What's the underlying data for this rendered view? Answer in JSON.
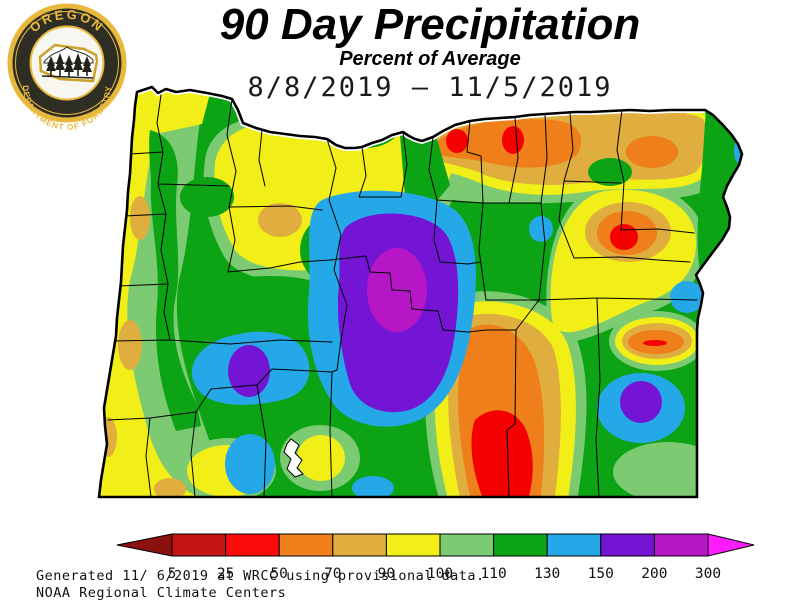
{
  "header": {
    "title": "90 Day Precipitation",
    "subtitle": "Percent of Average",
    "date_range": "8/8/2019 — 11/5/2019"
  },
  "logo": {
    "top_text": "OREGON",
    "bottom_text": "DEPARTMENT OF FORESTRY"
  },
  "legend": {
    "tick_labels": [
      "5",
      "25",
      "50",
      "70",
      "90",
      "100",
      "110",
      "130",
      "150",
      "200",
      "300"
    ],
    "segment_colors": [
      "#C41414",
      "#FB0B0B",
      "#EF7F1A",
      "#DFAE3F",
      "#F2EE17",
      "#7CCB72",
      "#0CA315",
      "#25A8E8",
      "#7414D4",
      "#B616C6"
    ],
    "arrow_left_color": "#8B1111",
    "arrow_right_color": "#FD1CFD"
  },
  "footer": {
    "line1": "Generated 11/ 6/2019 at WRCC using provisional data.",
    "line2": "NOAA Regional Climate Centers"
  },
  "chart_data": {
    "type": "heatmap",
    "subtype": "filled-contour precipitation map",
    "region": "Oregon",
    "title": "90 Day Precipitation",
    "subtitle": "Percent of Average",
    "period": "8/8/2019 — 11/5/2019",
    "units": "percent of average precipitation",
    "scale_ticks": [
      5,
      25,
      50,
      70,
      90,
      100,
      110,
      130,
      150,
      200,
      300
    ],
    "scale_colors": [
      "#C41414",
      "#FB0B0B",
      "#EF7F1A",
      "#DFAE3F",
      "#F2EE17",
      "#7CCB72",
      "#0CA315",
      "#25A8E8",
      "#7414D4",
      "#B616C6"
    ],
    "scale_under_color": "#8B1111",
    "scale_over_color": "#FD1CFD",
    "legend_position": "bottom",
    "notable_features": [
      "central Cascades core above 300% of average (magenta/purple bullseye)",
      "secondary wet purple spot in southern Cascades (150-200%)",
      "dry red area below 25% in southeast (Harney County area) reaching the south border",
      "red spots below 25% along the north-central Columbia border",
      "red/orange dry bullseye near Baker County in the northeast",
      "blue-purple wet blob (150-300%) near the southeast border",
      "yellow 90-100% band along the coast with scattered 70-90% tan spots",
      "white lake polygon (Crater Lake) in the south-central area"
    ]
  }
}
